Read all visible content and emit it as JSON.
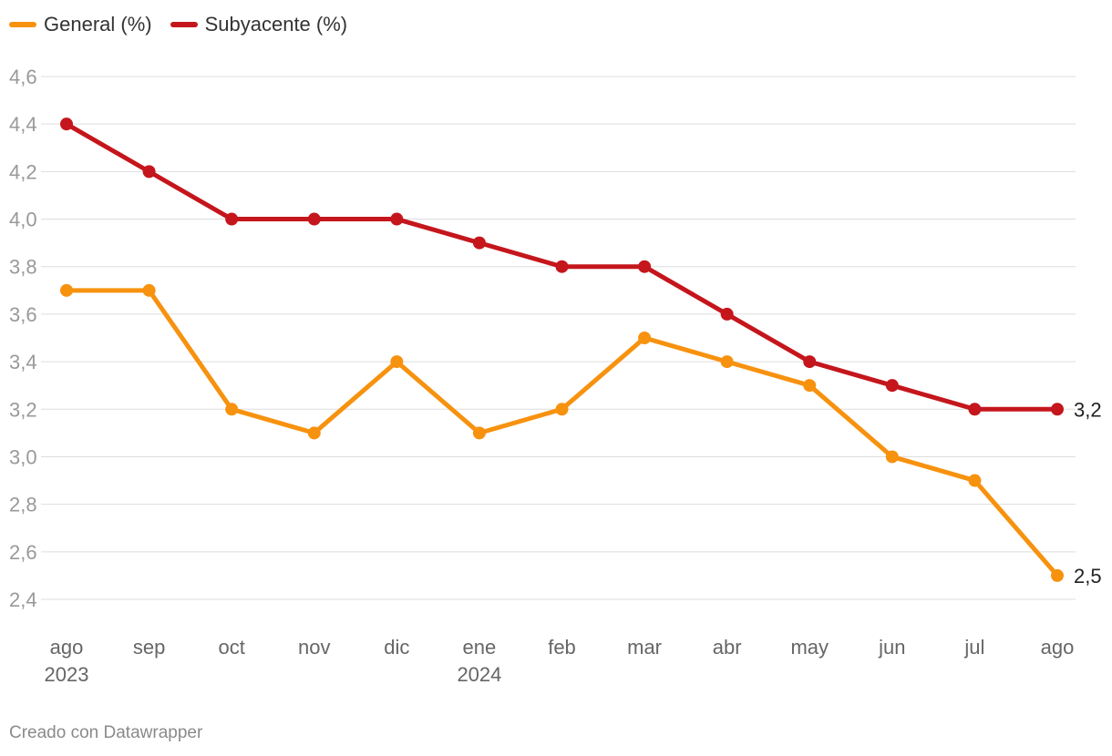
{
  "colors": {
    "general": "#f7920f",
    "subyacente": "#c4161c",
    "grid": "#dddddd",
    "tick": "#999999",
    "label": "#222222"
  },
  "legend": [
    {
      "label": "General (%)"
    },
    {
      "label": "Subyacente (%)"
    }
  ],
  "footer": "Creado con Datawrapper",
  "chart_data": {
    "type": "line",
    "categories": [
      "ago",
      "sep",
      "oct",
      "nov",
      "dic",
      "ene",
      "feb",
      "mar",
      "abr",
      "may",
      "jun",
      "jul",
      "ago"
    ],
    "year_labels": [
      "2023",
      "",
      "",
      "",
      "",
      "2024",
      "",
      "",
      "",
      "",
      "",
      "",
      ""
    ],
    "series": [
      {
        "name": "General (%)",
        "values": [
          3.7,
          3.7,
          3.2,
          3.1,
          3.4,
          3.1,
          3.2,
          3.5,
          3.4,
          3.3,
          3.0,
          2.9,
          2.5
        ],
        "end_label": "2,5"
      },
      {
        "name": "Subyacente (%)",
        "values": [
          4.4,
          4.2,
          4.0,
          4.0,
          4.0,
          3.9,
          3.8,
          3.8,
          3.6,
          3.4,
          3.3,
          3.2,
          3.2
        ],
        "end_label": "3,2"
      }
    ],
    "yticks": [
      "2,4",
      "2,6",
      "2,8",
      "3,0",
      "3,2",
      "3,4",
      "3,6",
      "3,8",
      "4,0",
      "4,2",
      "4,4",
      "4,6"
    ],
    "ylim": [
      2.4,
      4.6
    ],
    "grid": true,
    "legend_position": "top-left"
  }
}
